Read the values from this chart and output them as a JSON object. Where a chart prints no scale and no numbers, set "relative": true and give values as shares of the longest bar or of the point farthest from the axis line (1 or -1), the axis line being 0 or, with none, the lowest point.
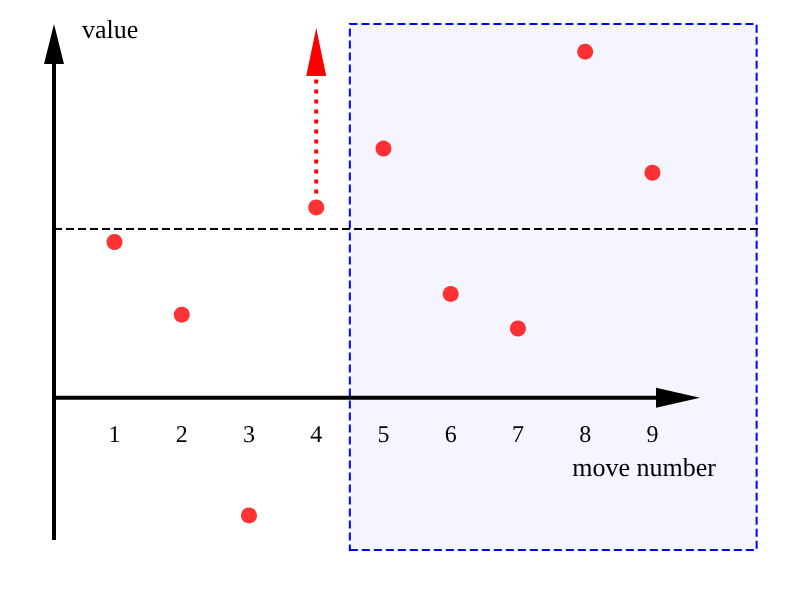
{
  "chart_data": {
    "type": "scatter",
    "xlabel": "move number",
    "ylabel": "value",
    "relative": true,
    "marker": "circle",
    "color": "#ff0000",
    "x": [
      1,
      2,
      3,
      4,
      5,
      6,
      7,
      8,
      9
    ],
    "values": [
      0.45,
      0.24,
      -0.34,
      0.55,
      0.72,
      0.3,
      0.2,
      1,
      0.65
    ],
    "xlim": [
      0.1,
      10.6
    ],
    "xticks": [
      1,
      2,
      3,
      4,
      5,
      6,
      7,
      8,
      9
    ],
    "ref_lines": [
      {
        "axis": "y",
        "value": 0.49,
        "color": "#000000",
        "line_style": "dashed"
      }
    ],
    "bands": [
      {
        "axis": "x",
        "from": 4.5,
        "to": 10.55,
        "color": "#0000ff"
      }
    ]
  }
}
